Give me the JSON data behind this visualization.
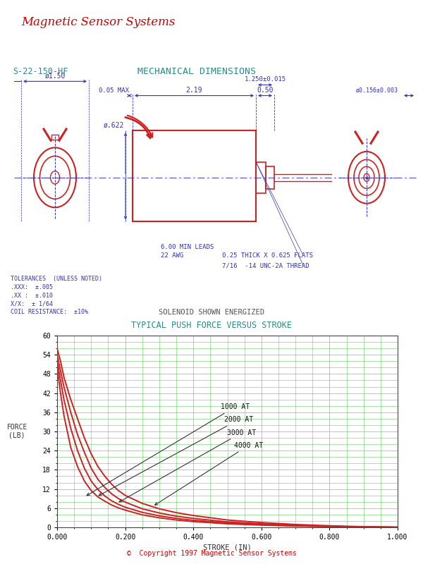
{
  "title_company": "Magnetic Sensor Systems",
  "title_company_color": "#cc0000",
  "part_number": "S-22-150-HF",
  "mech_dim_title": "MECHANICAL DIMENSIONS",
  "header_color": "#2e8b8b",
  "dim_color": "#3333bb",
  "drawing_color": "#cc2222",
  "solenoid_label": "SOLENOID SHOWN ENERGIZED",
  "graph_title": "TYPICAL PUSH FORCE VERSUS STROKE",
  "graph_title_color": "#2e8b8b",
  "xlabel": "STROKE (IN)",
  "ylabel": "FORCE\n(LB)",
  "copyright": "©  Copyright 1997 Magnetic Sensor Systems",
  "copyright_color": "#cc0000",
  "tolerances": "TOLERANCES  (UNLESS NOTED)\n.XXX:  ±.005\n.XX :  ±.010\nX/X:  ± 1/64\nCOIL RESISTANCE:  ±10%",
  "curve_1000_x": [
    0.0,
    0.01,
    0.02,
    0.04,
    0.06,
    0.08,
    0.1,
    0.12,
    0.14,
    0.16,
    0.18,
    0.2,
    0.25,
    0.3,
    0.35,
    0.4,
    0.5,
    0.6,
    0.7,
    0.8,
    0.9,
    1.0
  ],
  "curve_1000_y": [
    50.0,
    42.0,
    35.0,
    25.0,
    19.0,
    14.5,
    11.5,
    9.5,
    8.2,
    7.0,
    6.1,
    5.4,
    3.9,
    3.0,
    2.3,
    1.8,
    1.1,
    0.7,
    0.4,
    0.2,
    0.1,
    0.02
  ],
  "curve_2000_x": [
    0.0,
    0.01,
    0.02,
    0.04,
    0.06,
    0.08,
    0.1,
    0.12,
    0.14,
    0.16,
    0.18,
    0.2,
    0.25,
    0.3,
    0.35,
    0.4,
    0.5,
    0.6,
    0.7,
    0.8,
    0.9,
    1.0
  ],
  "curve_2000_y": [
    52.0,
    46.0,
    40.0,
    31.0,
    24.0,
    18.5,
    14.5,
    11.8,
    9.8,
    8.3,
    7.2,
    6.3,
    4.7,
    3.6,
    2.8,
    2.2,
    1.4,
    0.9,
    0.5,
    0.3,
    0.12,
    0.03
  ],
  "curve_3000_x": [
    0.0,
    0.01,
    0.02,
    0.04,
    0.06,
    0.08,
    0.1,
    0.12,
    0.14,
    0.16,
    0.18,
    0.2,
    0.25,
    0.3,
    0.35,
    0.4,
    0.5,
    0.6,
    0.7,
    0.8,
    0.9,
    1.0
  ],
  "curve_3000_y": [
    54.0,
    49.0,
    44.0,
    36.0,
    29.0,
    23.5,
    18.5,
    15.0,
    12.5,
    10.5,
    9.0,
    7.9,
    5.8,
    4.5,
    3.5,
    2.8,
    1.7,
    1.1,
    0.65,
    0.35,
    0.15,
    0.04
  ],
  "curve_4000_x": [
    0.0,
    0.01,
    0.02,
    0.04,
    0.06,
    0.08,
    0.1,
    0.12,
    0.14,
    0.16,
    0.18,
    0.2,
    0.25,
    0.3,
    0.35,
    0.4,
    0.5,
    0.6,
    0.7,
    0.8,
    0.9,
    1.0
  ],
  "curve_4000_y": [
    56.0,
    52.0,
    47.0,
    40.0,
    34.0,
    28.0,
    23.0,
    19.0,
    16.0,
    13.5,
    11.5,
    10.0,
    7.5,
    5.8,
    4.6,
    3.7,
    2.3,
    1.5,
    0.9,
    0.5,
    0.2,
    0.05
  ],
  "curve_color": "#cc2222",
  "grid_color_major": "#aaaaaa",
  "grid_color_minor": "#44cc44",
  "graph_bg": "#ffffff",
  "yticks": [
    0,
    6,
    12,
    18,
    24,
    30,
    36,
    42,
    48,
    54,
    60
  ],
  "xticks": [
    0.0,
    0.2,
    0.4,
    0.6,
    0.8,
    1.0
  ],
  "dim_annotations": {
    "phi_150": "ø1.50",
    "phi_622": "ø.622",
    "phi_0156": "ø0.156±0.003",
    "dim_005": "0.05 MAX",
    "dim_219": "2.19",
    "dim_050": "0.50",
    "dim_1250": "1.250±0.015",
    "leads_line1": "6.00 MIN LEADS",
    "leads_line2": "22 AWG",
    "flats": "0.25 THICK X 0.625 FLATS",
    "thread": "7/16  -14 UNC-2A THREAD"
  }
}
